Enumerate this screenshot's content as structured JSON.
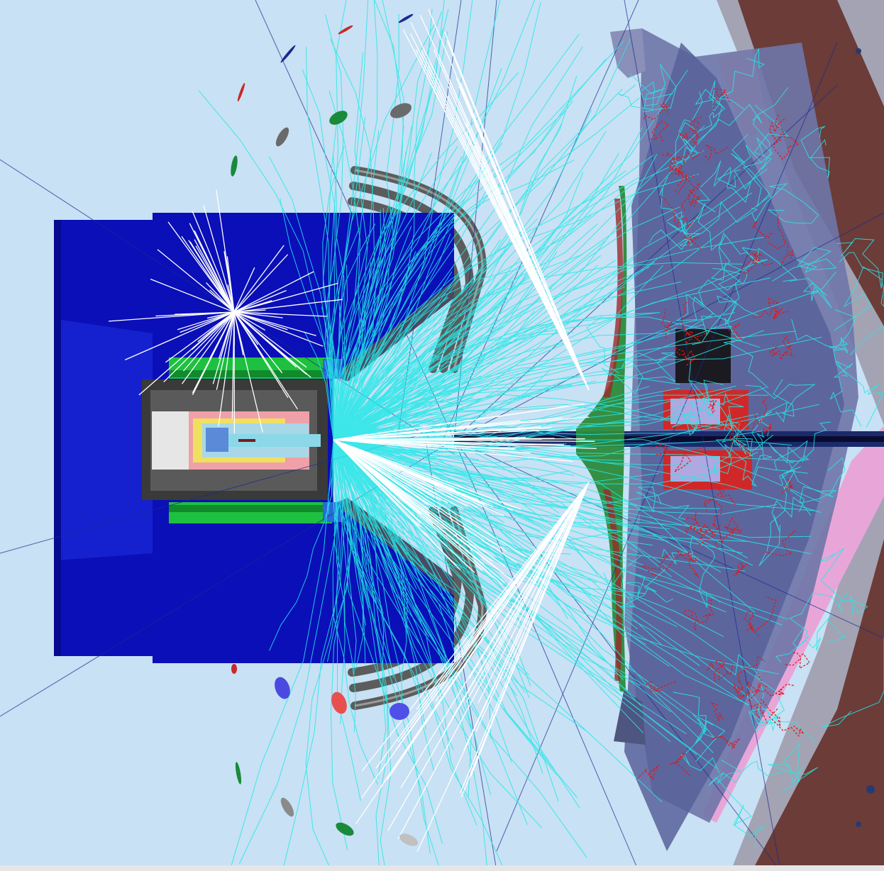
{
  "scene": {
    "description_free": true,
    "colors": {
      "background": "#c8e1f4",
      "detector_blue": "#0b0fbf",
      "detector_blue_light": "#1d2bd8",
      "calorimeter_green": "#22c24a",
      "pipe_gray": "#5a5a5a",
      "endplate_slate": "#5d6a9a",
      "wall_brown": "#6b3c38",
      "wall_gray": "#9a9aa8",
      "pink_plate": "#f0a8c8",
      "track_cyan": "#25e8e8",
      "track_white": "#ffffff",
      "track_red": "#e01818",
      "track_navy": "#1a2a90"
    }
  }
}
